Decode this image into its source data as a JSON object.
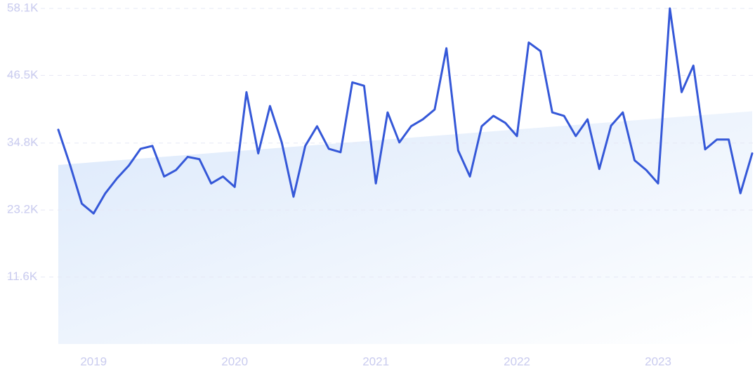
{
  "chart_data": {
    "type": "line",
    "categories": [
      null,
      null,
      null,
      "2019",
      null,
      null,
      null,
      null,
      null,
      null,
      null,
      null,
      null,
      null,
      null,
      "2020",
      null,
      null,
      null,
      null,
      null,
      null,
      null,
      null,
      null,
      null,
      null,
      "2021",
      null,
      null,
      null,
      null,
      null,
      null,
      null,
      null,
      null,
      null,
      null,
      "2022",
      null,
      null,
      null,
      null,
      null,
      null,
      null,
      null,
      null,
      null,
      null,
      "2023",
      null,
      null,
      null,
      null,
      null,
      null,
      null,
      null
    ],
    "series": [
      {
        "color": "#3558d8",
        "values": [
          37100,
          31000,
          24300,
          22600,
          26100,
          28700,
          30900,
          33800,
          34300,
          29000,
          30100,
          32400,
          32000,
          27800,
          29000,
          27200,
          43600,
          33000,
          41200,
          34900,
          25500,
          34300,
          37700,
          33800,
          33200,
          45300,
          44700,
          27800,
          40100,
          34900,
          37700,
          38900,
          40600,
          51200,
          33500,
          29000,
          37700,
          39500,
          38300,
          36000,
          52200,
          50700,
          40100,
          39500,
          36000,
          38900,
          30300,
          37800,
          40100,
          31800,
          30100,
          27800,
          58100,
          43600,
          48200,
          33700,
          35400,
          35400,
          26100,
          33000
        ]
      }
    ],
    "trend": {
      "start": 31000,
      "end": 40300,
      "color": "#dce9fb"
    },
    "ylim": [
      0,
      58100
    ],
    "yticks": [
      {
        "value": 11600,
        "label": "11.6K"
      },
      {
        "value": 23200,
        "label": "23.2K"
      },
      {
        "value": 34800,
        "label": "34.8K"
      },
      {
        "value": 46500,
        "label": "46.5K"
      },
      {
        "value": 58100,
        "label": "58.1K"
      }
    ],
    "grid": true
  }
}
